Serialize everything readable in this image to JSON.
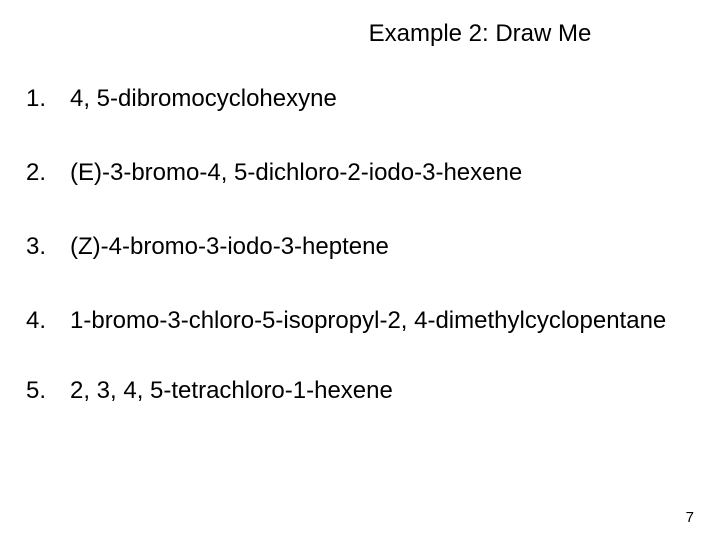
{
  "title": "Example 2:  Draw Me",
  "items": [
    {
      "num": "1.",
      "text": "4, 5-dibromocyclohexyne"
    },
    {
      "num": "2.",
      "text": "(E)-3-bromo-4, 5-dichloro-2-iodo-3-hexene"
    },
    {
      "num": "3.",
      "text": "(Z)-4-bromo-3-iodo-3-heptene"
    },
    {
      "num": "4.",
      "text": "1-bromo-3-chloro-5-isopropyl-2, 4-dimethylcyclopentane"
    },
    {
      "num": "5.",
      "text": "2, 3, 4, 5-tetrachloro-1-hexene"
    }
  ],
  "page_number": "7",
  "colors": {
    "background": "#ffffff",
    "text": "#000000"
  },
  "typography": {
    "font_family": "Arial",
    "title_fontsize": 24,
    "item_fontsize": 24,
    "page_number_fontsize": 15
  }
}
